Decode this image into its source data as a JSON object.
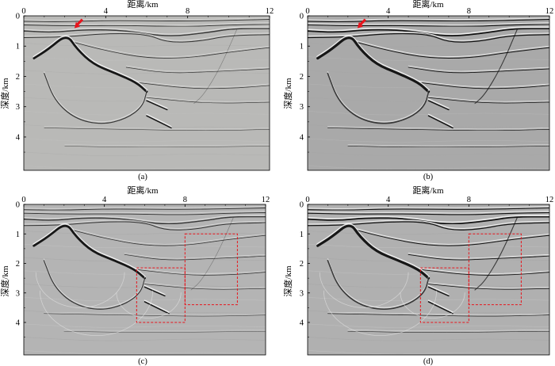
{
  "figure": {
    "x_axis_title": "距离/km",
    "y_axis_title": "深度/km",
    "x_ticks": [
      "0",
      "4",
      "8",
      "12"
    ],
    "y_ticks": [
      "0",
      "1",
      "2",
      "3",
      "4"
    ],
    "panels": [
      {
        "id": "a",
        "caption": "(a)",
        "arrow": true,
        "boxes": false,
        "style": "standard"
      },
      {
        "id": "b",
        "caption": "(b)",
        "arrow": true,
        "boxes": false,
        "style": "enhanced"
      },
      {
        "id": "c",
        "caption": "(c)",
        "arrow": false,
        "boxes": true,
        "style": "noisy"
      },
      {
        "id": "d",
        "caption": "(d)",
        "arrow": false,
        "boxes": true,
        "style": "enhanced-noisy"
      }
    ],
    "colors": {
      "background": "#b8b8b8",
      "reflector_dark": "#0a0a0a",
      "reflector_light": "#f4f4f4",
      "arrow": "#e8141c",
      "highlight_box": "#e8141c"
    }
  }
}
